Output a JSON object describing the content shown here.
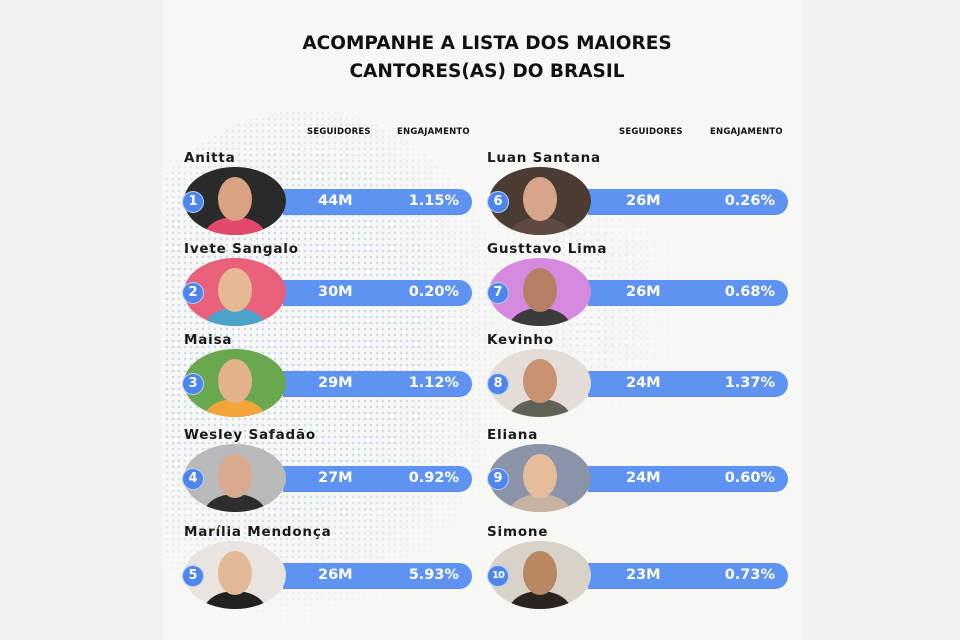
{
  "title": {
    "line1": "ACOMPANHE A LISTA DOS MAIORES",
    "line2": "CANTORES(AS) DO BRASIL"
  },
  "columns": {
    "left": {
      "followers_header": "SEGUIDORES",
      "engagement_header": "ENGAJAMENTO"
    },
    "right": {
      "followers_header": "SEGUIDORES",
      "engagement_header": "ENGAJAMENTO"
    }
  },
  "colors": {
    "bar": "#5f93f1",
    "badge": "#4f86ee",
    "text": "#111111",
    "background": "#f7f7f6"
  },
  "artists": [
    {
      "rank": "1",
      "name": "Anitta",
      "followers": "44M",
      "engagement": "1.15%",
      "avatar_bg": "#2a2a2a",
      "face": "#d9a383",
      "body": "#e34a6a"
    },
    {
      "rank": "2",
      "name": "Ivete Sangalo",
      "followers": "30M",
      "engagement": "0.20%",
      "avatar_bg": "#e8607a",
      "face": "#e7b894",
      "body": "#4aa3c9"
    },
    {
      "rank": "3",
      "name": "Maisa",
      "followers": "29M",
      "engagement": "1.12%",
      "avatar_bg": "#6aa84f",
      "face": "#e1b28c",
      "body": "#f3a53a"
    },
    {
      "rank": "4",
      "name": "Wesley Safadão",
      "followers": "27M",
      "engagement": "0.92%",
      "avatar_bg": "#b9b9b9",
      "face": "#d9aa8d",
      "body": "#2d2d2d"
    },
    {
      "rank": "5",
      "name": "Marília Mendonça",
      "followers": "26M",
      "engagement": "5.93%",
      "avatar_bg": "#e9e4df",
      "face": "#e2b896",
      "body": "#222222"
    },
    {
      "rank": "6",
      "name": "Luan Santana",
      "followers": "26M",
      "engagement": "0.26%",
      "avatar_bg": "#4a3b33",
      "face": "#d7a68a",
      "body": "#5e4a40"
    },
    {
      "rank": "7",
      "name": "Gusttavo Lima",
      "followers": "26M",
      "engagement": "0.68%",
      "avatar_bg": "#d58ae0",
      "face": "#b47f62",
      "body": "#3b3b3b"
    },
    {
      "rank": "8",
      "name": "Kevinho",
      "followers": "24M",
      "engagement": "1.37%",
      "avatar_bg": "#e4dcd6",
      "face": "#c99272",
      "body": "#5f6356"
    },
    {
      "rank": "9",
      "name": "Eliana",
      "followers": "24M",
      "engagement": "0.60%",
      "avatar_bg": "#8a93a8",
      "face": "#e6bd9a",
      "body": "#c7b3a3"
    },
    {
      "rank": "10",
      "name": "Simone",
      "followers": "23M",
      "engagement": "0.73%",
      "avatar_bg": "#d9d2c8",
      "face": "#b88762",
      "body": "#2b2320"
    }
  ]
}
